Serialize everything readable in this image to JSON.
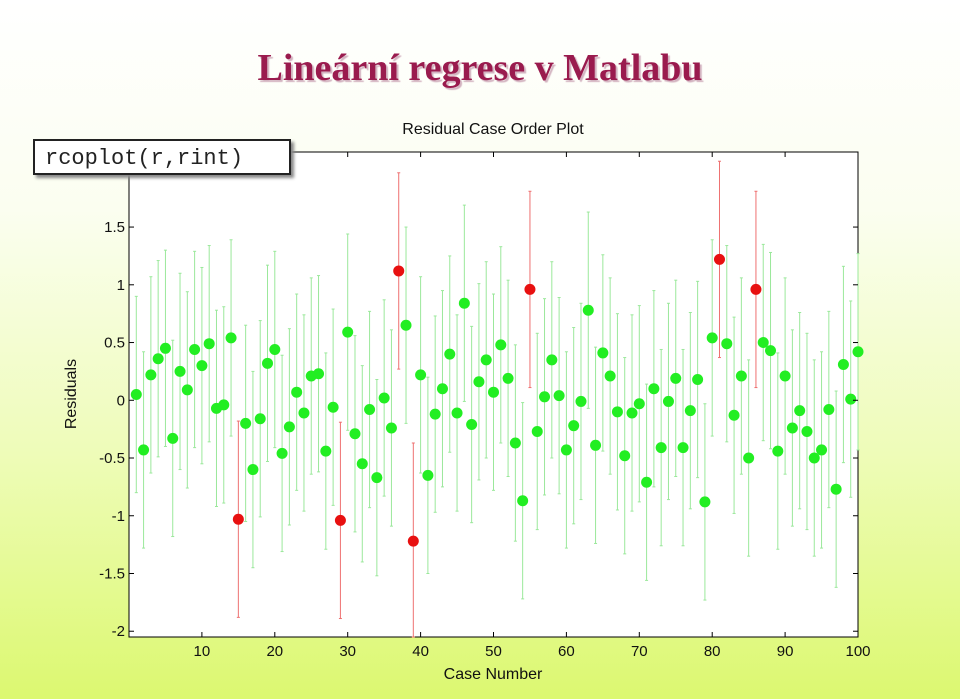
{
  "slide": {
    "title": "Lineární regrese v Matlabu",
    "code": "rcoplot(r,rint)"
  },
  "colors": {
    "normal": "#22ee22",
    "outlier": "#e81010",
    "normal_interval": "#9be89b",
    "outlier_interval": "#ee7070",
    "title": "#9a1b4e"
  },
  "chart_data": {
    "type": "scatter",
    "title": "Residual Case Order Plot",
    "xlabel": "Case Number",
    "ylabel": "Residuals",
    "xlim": [
      0,
      100
    ],
    "ylim": [
      -2.05,
      2.15
    ],
    "xticks": [
      10,
      20,
      30,
      40,
      50,
      60,
      70,
      80,
      90,
      100
    ],
    "yticks": [
      -2,
      -1.5,
      -1,
      -0.5,
      0,
      0.5,
      1,
      1.5
    ],
    "ytick_labels": [
      "-2",
      "-1.5",
      "-1",
      "-0.5",
      "0",
      "0.5",
      "1",
      "1.5"
    ],
    "grid": false,
    "interval_half_width": 0.85,
    "outlier_cases": [
      15,
      29,
      37,
      39,
      55,
      81,
      86
    ],
    "x": [
      1,
      2,
      3,
      4,
      5,
      6,
      7,
      8,
      9,
      10,
      11,
      12,
      13,
      14,
      15,
      16,
      17,
      18,
      19,
      20,
      21,
      22,
      23,
      24,
      25,
      26,
      27,
      28,
      29,
      30,
      31,
      32,
      33,
      34,
      35,
      36,
      37,
      38,
      39,
      40,
      41,
      42,
      43,
      44,
      45,
      46,
      47,
      48,
      49,
      50,
      51,
      52,
      53,
      54,
      55,
      56,
      57,
      58,
      59,
      60,
      61,
      62,
      63,
      64,
      65,
      66,
      67,
      68,
      69,
      70,
      71,
      72,
      73,
      74,
      75,
      76,
      77,
      78,
      79,
      80,
      81,
      82,
      83,
      84,
      85,
      86,
      87,
      88,
      89,
      90,
      91,
      92,
      93,
      94,
      95,
      96,
      97,
      98,
      99,
      100
    ],
    "residuals": [
      0.05,
      -0.43,
      0.22,
      0.36,
      0.45,
      -0.33,
      0.25,
      0.09,
      0.44,
      0.3,
      0.49,
      -0.07,
      -0.04,
      0.54,
      -1.03,
      -0.2,
      -0.6,
      -0.16,
      0.32,
      0.44,
      -0.46,
      -0.23,
      0.07,
      -0.11,
      0.21,
      0.23,
      -0.44,
      -0.06,
      -1.04,
      0.59,
      -0.29,
      -0.55,
      -0.08,
      -0.67,
      0.02,
      -0.24,
      1.12,
      0.65,
      -1.22,
      0.22,
      -0.65,
      -0.12,
      0.1,
      0.4,
      -0.11,
      0.84,
      -0.21,
      0.16,
      0.35,
      0.07,
      0.48,
      0.19,
      -0.37,
      -0.87,
      0.96,
      -0.27,
      0.03,
      0.35,
      0.04,
      -0.43,
      -0.22,
      -0.01,
      0.78,
      -0.39,
      0.41,
      0.21,
      -0.1,
      -0.48,
      -0.11,
      -0.03,
      -0.71,
      0.1,
      -0.41,
      -0.01,
      0.19,
      -0.41,
      -0.09,
      0.18,
      -0.88,
      0.54,
      1.22,
      0.49,
      -0.13,
      0.21,
      -0.5,
      0.96,
      0.5,
      0.43,
      -0.44,
      0.21,
      -0.24,
      -0.09,
      -0.27,
      -0.5,
      -0.43,
      -0.08,
      -0.77,
      0.31,
      0.01,
      0.42
    ]
  }
}
